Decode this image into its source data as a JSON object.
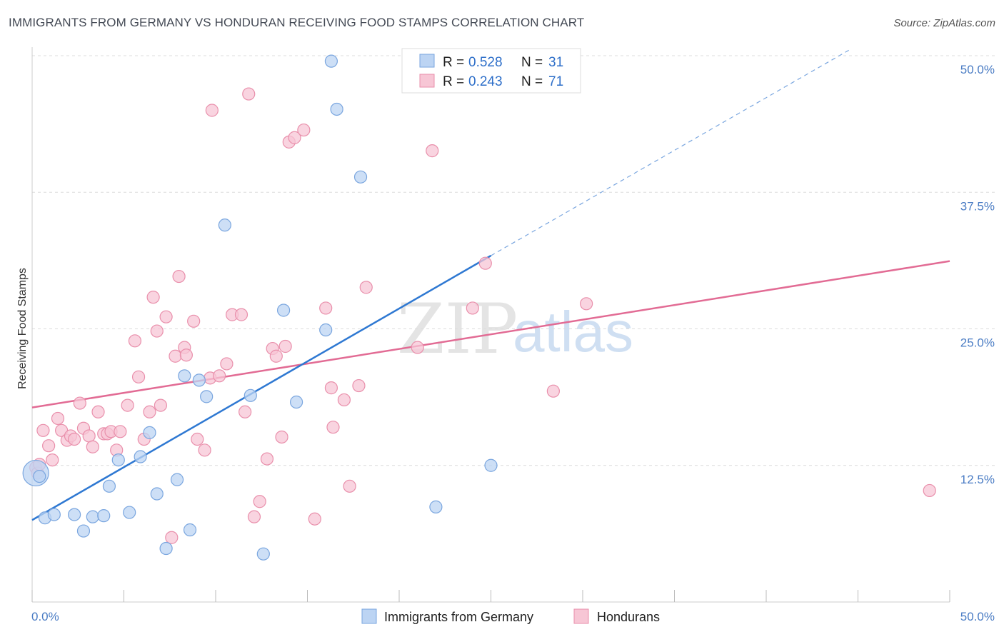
{
  "title": "IMMIGRANTS FROM GERMANY VS HONDURAN RECEIVING FOOD STAMPS CORRELATION CHART",
  "source": "Source: ZipAtlas.com",
  "colors": {
    "blue_fill": "#bcd4f3",
    "blue_stroke": "#7aa6df",
    "blue_line": "#2e78d2",
    "pink_fill": "#f7c6d5",
    "pink_stroke": "#e98fab",
    "pink_line": "#e26b94",
    "grid": "#dcdcdc",
    "axis_text": "#4a7cc4"
  },
  "legend": {
    "rows": [
      {
        "r_label": "R = ",
        "r_value": "0.528",
        "n_label": "N = ",
        "n_value": "31"
      },
      {
        "r_label": "R = ",
        "r_value": "0.243",
        "n_label": "N = ",
        "n_value": "71"
      }
    ]
  },
  "watermark": {
    "part1": "ZIP",
    "part2": "atlas"
  },
  "chart_data": {
    "type": "scatter",
    "title": "IMMIGRANTS FROM GERMANY VS HONDURAN RECEIVING FOOD STAMPS CORRELATION CHART",
    "xlabel": "",
    "ylabel": "Receiving Food Stamps",
    "xlim": [
      0,
      50
    ],
    "ylim": [
      0,
      50
    ],
    "x_tick_labels": [
      "0.0%",
      "50.0%"
    ],
    "y_ticks": [
      12.5,
      25.0,
      37.5,
      50.0
    ],
    "y_tick_labels": [
      "12.5%",
      "25.0%",
      "37.5%",
      "50.0%"
    ],
    "grid": true,
    "series": [
      {
        "name": "Immigrants from Germany",
        "color": "blue",
        "R": 0.528,
        "N": 31,
        "trend": {
          "x0": 0,
          "y0": 7.5,
          "x1": 25,
          "y1": 31.7,
          "dash_x1": 44.5,
          "dash_y1": 50.5
        },
        "points": [
          [
            0.2,
            11.8,
            "big"
          ],
          [
            0.7,
            7.7
          ],
          [
            1.2,
            8.0
          ],
          [
            2.3,
            8.0
          ],
          [
            2.8,
            6.5
          ],
          [
            3.3,
            7.8
          ],
          [
            3.9,
            7.9
          ],
          [
            4.2,
            10.6
          ],
          [
            4.7,
            13.0
          ],
          [
            5.3,
            8.2
          ],
          [
            5.9,
            13.3
          ],
          [
            6.4,
            15.5
          ],
          [
            6.8,
            9.9
          ],
          [
            7.3,
            4.9
          ],
          [
            7.9,
            11.2
          ],
          [
            8.3,
            20.7
          ],
          [
            8.6,
            6.6
          ],
          [
            9.1,
            20.3
          ],
          [
            9.5,
            18.8
          ],
          [
            10.5,
            34.5
          ],
          [
            11.9,
            18.9
          ],
          [
            12.6,
            4.4
          ],
          [
            13.7,
            26.7
          ],
          [
            14.4,
            18.3
          ],
          [
            16.0,
            24.9
          ],
          [
            16.3,
            49.5
          ],
          [
            16.6,
            45.1
          ],
          [
            17.9,
            38.9
          ],
          [
            22.0,
            8.7
          ],
          [
            25.0,
            12.5
          ],
          [
            0.4,
            11.5
          ]
        ]
      },
      {
        "name": "Hondurans",
        "color": "pink",
        "R": 0.243,
        "N": 71,
        "trend": {
          "x0": 0,
          "y0": 17.8,
          "x1": 50,
          "y1": 31.2
        },
        "points": [
          [
            0.2,
            12.3
          ],
          [
            0.3,
            11.8
          ],
          [
            0.4,
            12.6
          ],
          [
            0.6,
            15.7
          ],
          [
            0.9,
            14.3
          ],
          [
            1.1,
            13.0
          ],
          [
            1.4,
            16.8
          ],
          [
            1.6,
            15.7
          ],
          [
            1.9,
            14.8
          ],
          [
            2.1,
            15.2
          ],
          [
            2.3,
            14.9
          ],
          [
            2.6,
            18.2
          ],
          [
            2.8,
            15.9
          ],
          [
            3.1,
            15.2
          ],
          [
            3.3,
            14.2
          ],
          [
            3.6,
            17.4
          ],
          [
            3.9,
            15.4
          ],
          [
            4.1,
            15.4
          ],
          [
            4.3,
            15.6
          ],
          [
            4.6,
            13.9
          ],
          [
            4.8,
            15.6
          ],
          [
            5.2,
            18.0
          ],
          [
            5.6,
            23.9
          ],
          [
            5.8,
            20.6
          ],
          [
            6.1,
            14.9
          ],
          [
            6.4,
            17.4
          ],
          [
            6.6,
            27.9
          ],
          [
            6.8,
            24.8
          ],
          [
            7.0,
            18.0
          ],
          [
            7.3,
            26.1
          ],
          [
            7.6,
            5.9
          ],
          [
            7.8,
            22.5
          ],
          [
            8.0,
            29.8
          ],
          [
            8.3,
            23.3
          ],
          [
            8.4,
            22.6
          ],
          [
            8.8,
            25.7
          ],
          [
            9.0,
            14.9
          ],
          [
            9.4,
            13.9
          ],
          [
            9.7,
            20.5
          ],
          [
            10.2,
            20.7
          ],
          [
            10.6,
            21.8
          ],
          [
            10.9,
            26.3
          ],
          [
            11.4,
            26.3
          ],
          [
            11.6,
            17.4
          ],
          [
            11.8,
            46.5
          ],
          [
            12.1,
            7.8
          ],
          [
            12.4,
            9.2
          ],
          [
            12.8,
            13.1
          ],
          [
            13.1,
            23.2
          ],
          [
            13.3,
            22.5
          ],
          [
            13.6,
            15.1
          ],
          [
            13.8,
            23.4
          ],
          [
            14.0,
            42.1
          ],
          [
            14.3,
            42.5
          ],
          [
            14.8,
            43.2
          ],
          [
            15.4,
            7.6
          ],
          [
            16.0,
            26.9
          ],
          [
            16.3,
            19.6
          ],
          [
            16.4,
            16.0
          ],
          [
            17.0,
            18.5
          ],
          [
            17.3,
            10.6
          ],
          [
            17.8,
            19.8
          ],
          [
            18.2,
            28.8
          ],
          [
            21.0,
            23.3
          ],
          [
            21.8,
            41.3
          ],
          [
            24.0,
            26.9
          ],
          [
            24.7,
            31.0
          ],
          [
            28.4,
            19.3
          ],
          [
            30.2,
            27.3
          ],
          [
            48.9,
            10.2
          ],
          [
            9.8,
            45.0
          ]
        ]
      }
    ]
  },
  "bottom_legend": {
    "items": [
      "Immigrants from Germany",
      "Hondurans"
    ]
  }
}
